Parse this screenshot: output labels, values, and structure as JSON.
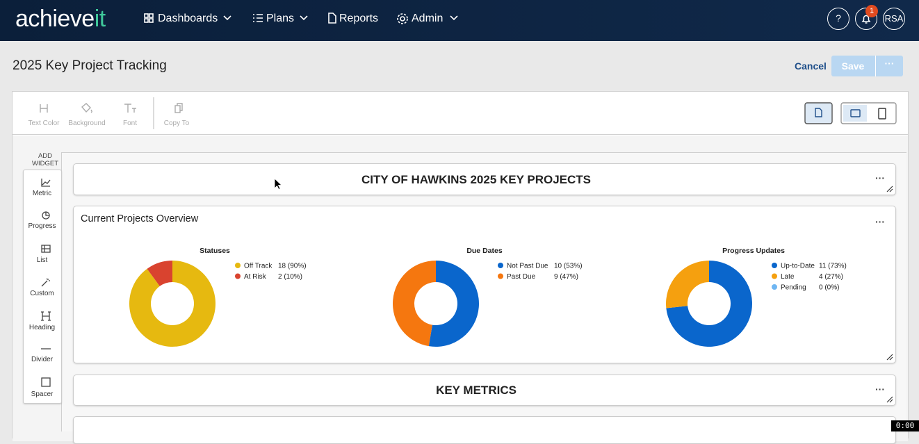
{
  "nav": {
    "brand_main": "achieve",
    "brand_accent": "it",
    "items": [
      "Dashboards",
      "Plans",
      "Reports",
      "Admin"
    ],
    "notification_count": 1,
    "avatar": "RSA"
  },
  "page": {
    "title": "2025 Key Project Tracking",
    "cancel": "Cancel",
    "save": "Save"
  },
  "toolbar": {
    "tools": [
      "Text Color",
      "Background",
      "Font",
      "Copy To"
    ]
  },
  "sidebar": {
    "title": "ADD WIDGET",
    "widgets": [
      "Metric",
      "Progress",
      "List",
      "Custom",
      "Heading",
      "Divider",
      "Spacer"
    ]
  },
  "headings": [
    "CITY OF HAWKINS 2025 KEY PROJECTS",
    "KEY METRICS"
  ],
  "overview": {
    "title": "Current Projects Overview",
    "charts": [
      {
        "type": "pie",
        "title": "Statuses",
        "categories": [
          "Off Track",
          "At Risk"
        ],
        "values": [
          18,
          2
        ],
        "value_labels": [
          "18 (90%)",
          "2 (10%)"
        ],
        "colors": [
          "#e6b910",
          "#d9432f"
        ]
      },
      {
        "type": "pie",
        "title": "Due Dates",
        "categories": [
          "Not Past Due",
          "Past Due"
        ],
        "values": [
          10,
          9
        ],
        "value_labels": [
          "10 (53%)",
          "9 (47%)"
        ],
        "colors": [
          "#0a66cc",
          "#f5770f"
        ]
      },
      {
        "type": "pie",
        "title": "Progress Updates",
        "categories": [
          "Up-to-Date",
          "Late",
          "Pending"
        ],
        "values": [
          11,
          4,
          0
        ],
        "value_labels": [
          "11 (73%)",
          "4 (27%)",
          "0 (0%)"
        ],
        "colors": [
          "#0a66cc",
          "#f5a00f",
          "#6fb6f2"
        ]
      }
    ]
  },
  "timer": "0:00"
}
